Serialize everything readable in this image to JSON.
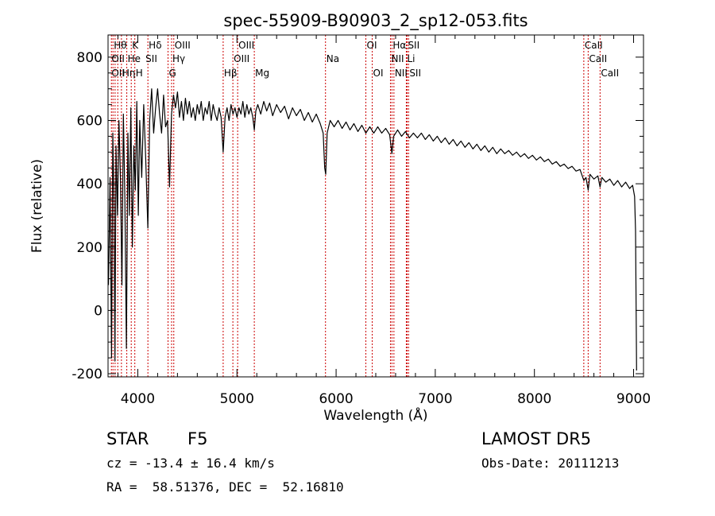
{
  "chart_data": {
    "type": "line",
    "title": "spec-55909-B90903_2_sp12-053.fits",
    "xlabel": "Wavelength (Å)",
    "ylabel": "Flux (relative)",
    "xlim": [
      3700,
      9100
    ],
    "ylim": [
      -210,
      870
    ],
    "x_ticks": [
      4000,
      5000,
      6000,
      7000,
      8000,
      9000
    ],
    "y_ticks": [
      -200,
      0,
      200,
      400,
      600,
      800
    ],
    "grid": false,
    "series": [
      {
        "color": "#000000",
        "points": [
          [
            3705,
            80
          ],
          [
            3720,
            420
          ],
          [
            3735,
            -150
          ],
          [
            3748,
            560
          ],
          [
            3760,
            350
          ],
          [
            3770,
            -160
          ],
          [
            3780,
            520
          ],
          [
            3795,
            300
          ],
          [
            3810,
            600
          ],
          [
            3825,
            420
          ],
          [
            3840,
            80
          ],
          [
            3855,
            620
          ],
          [
            3870,
            350
          ],
          [
            3885,
            -120
          ],
          [
            3900,
            560
          ],
          [
            3915,
            300
          ],
          [
            3930,
            640
          ],
          [
            3945,
            200
          ],
          [
            3960,
            520
          ],
          [
            3975,
            380
          ],
          [
            3990,
            660
          ],
          [
            4005,
            300
          ],
          [
            4020,
            600
          ],
          [
            4040,
            420
          ],
          [
            4060,
            650
          ],
          [
            4080,
            480
          ],
          [
            4101,
            260
          ],
          [
            4120,
            600
          ],
          [
            4140,
            700
          ],
          [
            4160,
            560
          ],
          [
            4180,
            640
          ],
          [
            4200,
            700
          ],
          [
            4220,
            620
          ],
          [
            4240,
            560
          ],
          [
            4260,
            680
          ],
          [
            4280,
            580
          ],
          [
            4300,
            600
          ],
          [
            4320,
            390
          ],
          [
            4340,
            620
          ],
          [
            4360,
            680
          ],
          [
            4380,
            640
          ],
          [
            4400,
            690
          ],
          [
            4420,
            610
          ],
          [
            4440,
            660
          ],
          [
            4460,
            600
          ],
          [
            4480,
            670
          ],
          [
            4500,
            620
          ],
          [
            4520,
            660
          ],
          [
            4540,
            610
          ],
          [
            4560,
            640
          ],
          [
            4580,
            600
          ],
          [
            4600,
            650
          ],
          [
            4620,
            620
          ],
          [
            4640,
            660
          ],
          [
            4660,
            600
          ],
          [
            4680,
            640
          ],
          [
            4700,
            620
          ],
          [
            4720,
            660
          ],
          [
            4740,
            600
          ],
          [
            4760,
            650
          ],
          [
            4780,
            620
          ],
          [
            4800,
            600
          ],
          [
            4820,
            640
          ],
          [
            4840,
            610
          ],
          [
            4861,
            500
          ],
          [
            4880,
            610
          ],
          [
            4900,
            640
          ],
          [
            4920,
            600
          ],
          [
            4940,
            650
          ],
          [
            4960,
            620
          ],
          [
            4980,
            640
          ],
          [
            5000,
            610
          ],
          [
            5020,
            640
          ],
          [
            5040,
            620
          ],
          [
            5060,
            660
          ],
          [
            5080,
            610
          ],
          [
            5100,
            650
          ],
          [
            5120,
            620
          ],
          [
            5140,
            640
          ],
          [
            5160,
            610
          ],
          [
            5175,
            570
          ],
          [
            5190,
            630
          ],
          [
            5210,
            650
          ],
          [
            5240,
            620
          ],
          [
            5270,
            660
          ],
          [
            5300,
            630
          ],
          [
            5330,
            655
          ],
          [
            5360,
            615
          ],
          [
            5400,
            650
          ],
          [
            5440,
            625
          ],
          [
            5480,
            645
          ],
          [
            5520,
            605
          ],
          [
            5560,
            640
          ],
          [
            5600,
            615
          ],
          [
            5640,
            635
          ],
          [
            5680,
            600
          ],
          [
            5720,
            625
          ],
          [
            5760,
            595
          ],
          [
            5800,
            620
          ],
          [
            5840,
            590
          ],
          [
            5870,
            560
          ],
          [
            5885,
            450
          ],
          [
            5895,
            430
          ],
          [
            5910,
            560
          ],
          [
            5940,
            600
          ],
          [
            5980,
            580
          ],
          [
            6020,
            600
          ],
          [
            6060,
            575
          ],
          [
            6100,
            595
          ],
          [
            6140,
            570
          ],
          [
            6180,
            590
          ],
          [
            6220,
            565
          ],
          [
            6260,
            585
          ],
          [
            6300,
            560
          ],
          [
            6340,
            580
          ],
          [
            6380,
            560
          ],
          [
            6420,
            580
          ],
          [
            6460,
            560
          ],
          [
            6500,
            575
          ],
          [
            6540,
            555
          ],
          [
            6563,
            495
          ],
          [
            6580,
            550
          ],
          [
            6620,
            570
          ],
          [
            6660,
            550
          ],
          [
            6700,
            565
          ],
          [
            6740,
            545
          ],
          [
            6780,
            560
          ],
          [
            6820,
            545
          ],
          [
            6860,
            560
          ],
          [
            6900,
            540
          ],
          [
            6940,
            555
          ],
          [
            6980,
            535
          ],
          [
            7020,
            550
          ],
          [
            7060,
            530
          ],
          [
            7100,
            545
          ],
          [
            7140,
            525
          ],
          [
            7180,
            540
          ],
          [
            7220,
            520
          ],
          [
            7260,
            535
          ],
          [
            7300,
            515
          ],
          [
            7340,
            530
          ],
          [
            7380,
            510
          ],
          [
            7420,
            525
          ],
          [
            7460,
            505
          ],
          [
            7500,
            520
          ],
          [
            7540,
            500
          ],
          [
            7580,
            515
          ],
          [
            7620,
            495
          ],
          [
            7660,
            510
          ],
          [
            7700,
            495
          ],
          [
            7740,
            505
          ],
          [
            7780,
            490
          ],
          [
            7820,
            500
          ],
          [
            7860,
            485
          ],
          [
            7900,
            495
          ],
          [
            7940,
            480
          ],
          [
            7980,
            490
          ],
          [
            8020,
            475
          ],
          [
            8060,
            485
          ],
          [
            8100,
            470
          ],
          [
            8140,
            478
          ],
          [
            8180,
            462
          ],
          [
            8220,
            470
          ],
          [
            8260,
            455
          ],
          [
            8300,
            462
          ],
          [
            8340,
            448
          ],
          [
            8380,
            455
          ],
          [
            8420,
            440
          ],
          [
            8460,
            445
          ],
          [
            8498,
            410
          ],
          [
            8520,
            420
          ],
          [
            8542,
            380
          ],
          [
            8560,
            430
          ],
          [
            8600,
            415
          ],
          [
            8640,
            425
          ],
          [
            8662,
            390
          ],
          [
            8680,
            420
          ],
          [
            8720,
            405
          ],
          [
            8760,
            415
          ],
          [
            8800,
            395
          ],
          [
            8840,
            410
          ],
          [
            8880,
            390
          ],
          [
            8920,
            405
          ],
          [
            8960,
            385
          ],
          [
            8990,
            395
          ],
          [
            9010,
            360
          ],
          [
            9020,
            250
          ],
          [
            9030,
            -190
          ]
        ]
      }
    ],
    "line_groups": [
      {
        "color": "#cc0000",
        "wavelengths": [
          3734,
          3750,
          3771,
          3798,
          3835,
          3889,
          3934,
          3970,
          4102,
          4305,
          4341,
          4363,
          4861,
          4959,
          5007,
          5175,
          5893,
          6300,
          6364,
          6548,
          6563,
          6583,
          6708,
          6716,
          6731,
          8498,
          8542,
          8662
        ]
      }
    ],
    "line_labels": [
      {
        "text": "Hθ",
        "x": 3750,
        "row": 1
      },
      {
        "text": "K",
        "x": 3934,
        "row": 1
      },
      {
        "text": "Hδ",
        "x": 4102,
        "row": 1
      },
      {
        "text": "OIII",
        "x": 4363,
        "row": 1
      },
      {
        "text": "OIII",
        "x": 5007,
        "row": 1
      },
      {
        "text": "OI",
        "x": 6300,
        "row": 1
      },
      {
        "text": "Hα",
        "x": 6563,
        "row": 1
      },
      {
        "text": "SII",
        "x": 6716,
        "row": 1
      },
      {
        "text": "CaII",
        "x": 8498,
        "row": 1
      },
      {
        "text": "OII",
        "x": 3727,
        "row": 2
      },
      {
        "text": "He",
        "x": 3889,
        "row": 2
      },
      {
        "text": "SII",
        "x": 4070,
        "row": 2
      },
      {
        "text": "Hγ",
        "x": 4341,
        "row": 2
      },
      {
        "text": "OIII",
        "x": 4959,
        "row": 2
      },
      {
        "text": "Na",
        "x": 5893,
        "row": 2
      },
      {
        "text": "NII",
        "x": 6548,
        "row": 2
      },
      {
        "text": "Li",
        "x": 6708,
        "row": 2
      },
      {
        "text": "CaII",
        "x": 8542,
        "row": 2
      },
      {
        "text": "OII",
        "x": 3727,
        "row": 3
      },
      {
        "text": "Hη",
        "x": 3835,
        "row": 3
      },
      {
        "text": "H",
        "x": 3970,
        "row": 3
      },
      {
        "text": "G",
        "x": 4305,
        "row": 3
      },
      {
        "text": "Hβ",
        "x": 4861,
        "row": 3
      },
      {
        "text": "Mg",
        "x": 5175,
        "row": 3
      },
      {
        "text": "OI",
        "x": 6364,
        "row": 3
      },
      {
        "text": "NII",
        "x": 6583,
        "row": 3
      },
      {
        "text": "SII",
        "x": 6731,
        "row": 3
      },
      {
        "text": "CaII",
        "x": 8662,
        "row": 3
      }
    ]
  },
  "info": {
    "object_class": "STAR",
    "subclass": "F5",
    "survey": "LAMOST DR5",
    "velocity": "cz = -13.4 ± 16.4 km/s",
    "obs_date": "Obs-Date: 20111213",
    "coords": "RA =  58.51376, DEC =  52.16810"
  }
}
